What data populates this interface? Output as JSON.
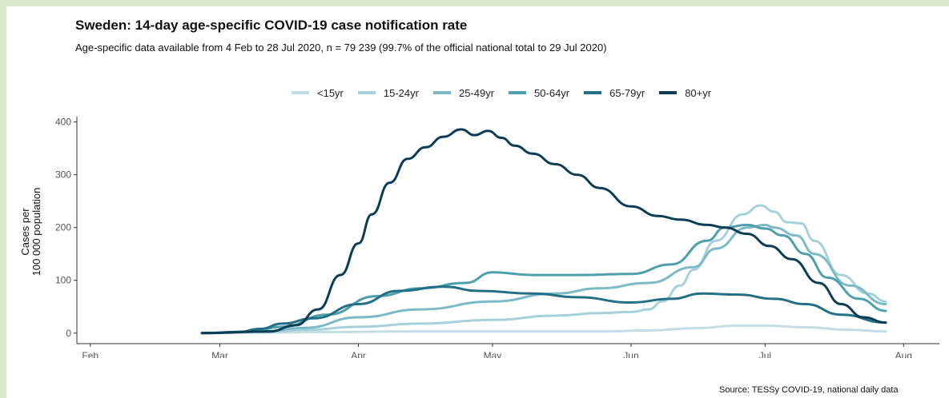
{
  "chart_data": {
    "type": "line",
    "title": "Sweden: 14-day age-specific COVID-19 case notification rate",
    "subtitle": "Age-specific data available from 4 Feb to 28 Jul 2020, n = 79 239 (99.7% of the official national total to 29 Jul 2020)",
    "ylabel_line1": "Cases per",
    "ylabel_line2": "100 000 population",
    "source": "Source: TESSy COVID-19, national daily data",
    "legend_position": "top",
    "grid": false,
    "xlim": [
      "2020-01-29",
      "2020-08-09"
    ],
    "ylim": [
      -20,
      410
    ],
    "x_ticks": [
      {
        "date": "2020-02-01",
        "label": "Feb"
      },
      {
        "date": "2020-03-01",
        "label": "Mar"
      },
      {
        "date": "2020-04-01",
        "label": "Apr"
      },
      {
        "date": "2020-05-01",
        "label": "May"
      },
      {
        "date": "2020-06-01",
        "label": "Jun"
      },
      {
        "date": "2020-07-01",
        "label": "Jul"
      },
      {
        "date": "2020-08-01",
        "label": "Aug"
      }
    ],
    "y_ticks": [
      0,
      100,
      200,
      300,
      400
    ],
    "series": [
      {
        "name": "<15yr",
        "color": "#c2dde6",
        "points": [
          [
            "2020-02-26",
            0
          ],
          [
            "2020-03-10",
            1
          ],
          [
            "2020-03-25",
            2
          ],
          [
            "2020-04-10",
            3
          ],
          [
            "2020-04-25",
            3
          ],
          [
            "2020-05-10",
            3
          ],
          [
            "2020-05-25",
            3
          ],
          [
            "2020-06-05",
            5
          ],
          [
            "2020-06-15",
            9
          ],
          [
            "2020-06-25",
            14
          ],
          [
            "2020-07-01",
            14
          ],
          [
            "2020-07-10",
            11
          ],
          [
            "2020-07-20",
            6
          ],
          [
            "2020-07-28",
            3
          ]
        ]
      },
      {
        "name": "15-24yr",
        "color": "#a6d0da",
        "points": [
          [
            "2020-02-26",
            0
          ],
          [
            "2020-03-10",
            2
          ],
          [
            "2020-03-20",
            6
          ],
          [
            "2020-04-01",
            12
          ],
          [
            "2020-04-15",
            18
          ],
          [
            "2020-05-01",
            25
          ],
          [
            "2020-05-15",
            33
          ],
          [
            "2020-05-25",
            38
          ],
          [
            "2020-06-01",
            40
          ],
          [
            "2020-06-05",
            45
          ],
          [
            "2020-06-08",
            60
          ],
          [
            "2020-06-12",
            90
          ],
          [
            "2020-06-15",
            120
          ],
          [
            "2020-06-20",
            175
          ],
          [
            "2020-06-26",
            225
          ],
          [
            "2020-06-30",
            242
          ],
          [
            "2020-07-03",
            230
          ],
          [
            "2020-07-06",
            210
          ],
          [
            "2020-07-09",
            208
          ],
          [
            "2020-07-12",
            175
          ],
          [
            "2020-07-18",
            110
          ],
          [
            "2020-07-24",
            75
          ],
          [
            "2020-07-28",
            60
          ]
        ]
      },
      {
        "name": "25-49yr",
        "color": "#7bbac6",
        "points": [
          [
            "2020-02-26",
            0
          ],
          [
            "2020-03-10",
            3
          ],
          [
            "2020-03-20",
            10
          ],
          [
            "2020-04-01",
            30
          ],
          [
            "2020-04-15",
            45
          ],
          [
            "2020-05-01",
            60
          ],
          [
            "2020-05-15",
            75
          ],
          [
            "2020-05-25",
            85
          ],
          [
            "2020-06-05",
            95
          ],
          [
            "2020-06-15",
            125
          ],
          [
            "2020-06-20",
            160
          ],
          [
            "2020-06-27",
            200
          ],
          [
            "2020-07-01",
            205
          ],
          [
            "2020-07-03",
            200
          ],
          [
            "2020-07-08",
            185
          ],
          [
            "2020-07-12",
            150
          ],
          [
            "2020-07-20",
            90
          ],
          [
            "2020-07-28",
            55
          ]
        ]
      },
      {
        "name": "50-64yr",
        "color": "#4e9fae",
        "points": [
          [
            "2020-02-26",
            0
          ],
          [
            "2020-03-08",
            3
          ],
          [
            "2020-03-15",
            12
          ],
          [
            "2020-03-25",
            35
          ],
          [
            "2020-04-05",
            70
          ],
          [
            "2020-04-15",
            85
          ],
          [
            "2020-04-25",
            95
          ],
          [
            "2020-05-01",
            115
          ],
          [
            "2020-05-10",
            110
          ],
          [
            "2020-05-20",
            110
          ],
          [
            "2020-06-01",
            112
          ],
          [
            "2020-06-10",
            130
          ],
          [
            "2020-06-18",
            175
          ],
          [
            "2020-06-22",
            200
          ],
          [
            "2020-06-27",
            205
          ],
          [
            "2020-07-01",
            198
          ],
          [
            "2020-07-05",
            185
          ],
          [
            "2020-07-10",
            150
          ],
          [
            "2020-07-15",
            105
          ],
          [
            "2020-07-22",
            65
          ],
          [
            "2020-07-28",
            42
          ]
        ]
      },
      {
        "name": "65-79yr",
        "color": "#236f85",
        "points": [
          [
            "2020-02-26",
            0
          ],
          [
            "2020-03-05",
            2
          ],
          [
            "2020-03-10",
            8
          ],
          [
            "2020-03-15",
            18
          ],
          [
            "2020-03-22",
            28
          ],
          [
            "2020-04-01",
            55
          ],
          [
            "2020-04-10",
            80
          ],
          [
            "2020-04-20",
            88
          ],
          [
            "2020-04-28",
            80
          ],
          [
            "2020-05-10",
            75
          ],
          [
            "2020-05-20",
            68
          ],
          [
            "2020-06-01",
            58
          ],
          [
            "2020-06-10",
            65
          ],
          [
            "2020-06-17",
            75
          ],
          [
            "2020-06-25",
            73
          ],
          [
            "2020-07-03",
            65
          ],
          [
            "2020-07-10",
            55
          ],
          [
            "2020-07-18",
            35
          ],
          [
            "2020-07-28",
            20
          ]
        ]
      },
      {
        "name": "80+yr",
        "color": "#0c3d55",
        "points": [
          [
            "2020-02-26",
            0
          ],
          [
            "2020-03-12",
            3
          ],
          [
            "2020-03-18",
            15
          ],
          [
            "2020-03-23",
            45
          ],
          [
            "2020-03-28",
            110
          ],
          [
            "2020-04-01",
            170
          ],
          [
            "2020-04-04",
            225
          ],
          [
            "2020-04-08",
            285
          ],
          [
            "2020-04-12",
            330
          ],
          [
            "2020-04-16",
            352
          ],
          [
            "2020-04-20",
            372
          ],
          [
            "2020-04-24",
            386
          ],
          [
            "2020-04-27",
            375
          ],
          [
            "2020-04-30",
            383
          ],
          [
            "2020-05-03",
            370
          ],
          [
            "2020-05-06",
            355
          ],
          [
            "2020-05-10",
            340
          ],
          [
            "2020-05-15",
            320
          ],
          [
            "2020-05-20",
            300
          ],
          [
            "2020-05-25",
            275
          ],
          [
            "2020-06-01",
            240
          ],
          [
            "2020-06-07",
            222
          ],
          [
            "2020-06-12",
            215
          ],
          [
            "2020-06-18",
            205
          ],
          [
            "2020-06-22",
            200
          ],
          [
            "2020-06-27",
            188
          ],
          [
            "2020-07-02",
            165
          ],
          [
            "2020-07-07",
            140
          ],
          [
            "2020-07-13",
            95
          ],
          [
            "2020-07-18",
            55
          ],
          [
            "2020-07-23",
            30
          ],
          [
            "2020-07-28",
            20
          ]
        ]
      }
    ]
  }
}
